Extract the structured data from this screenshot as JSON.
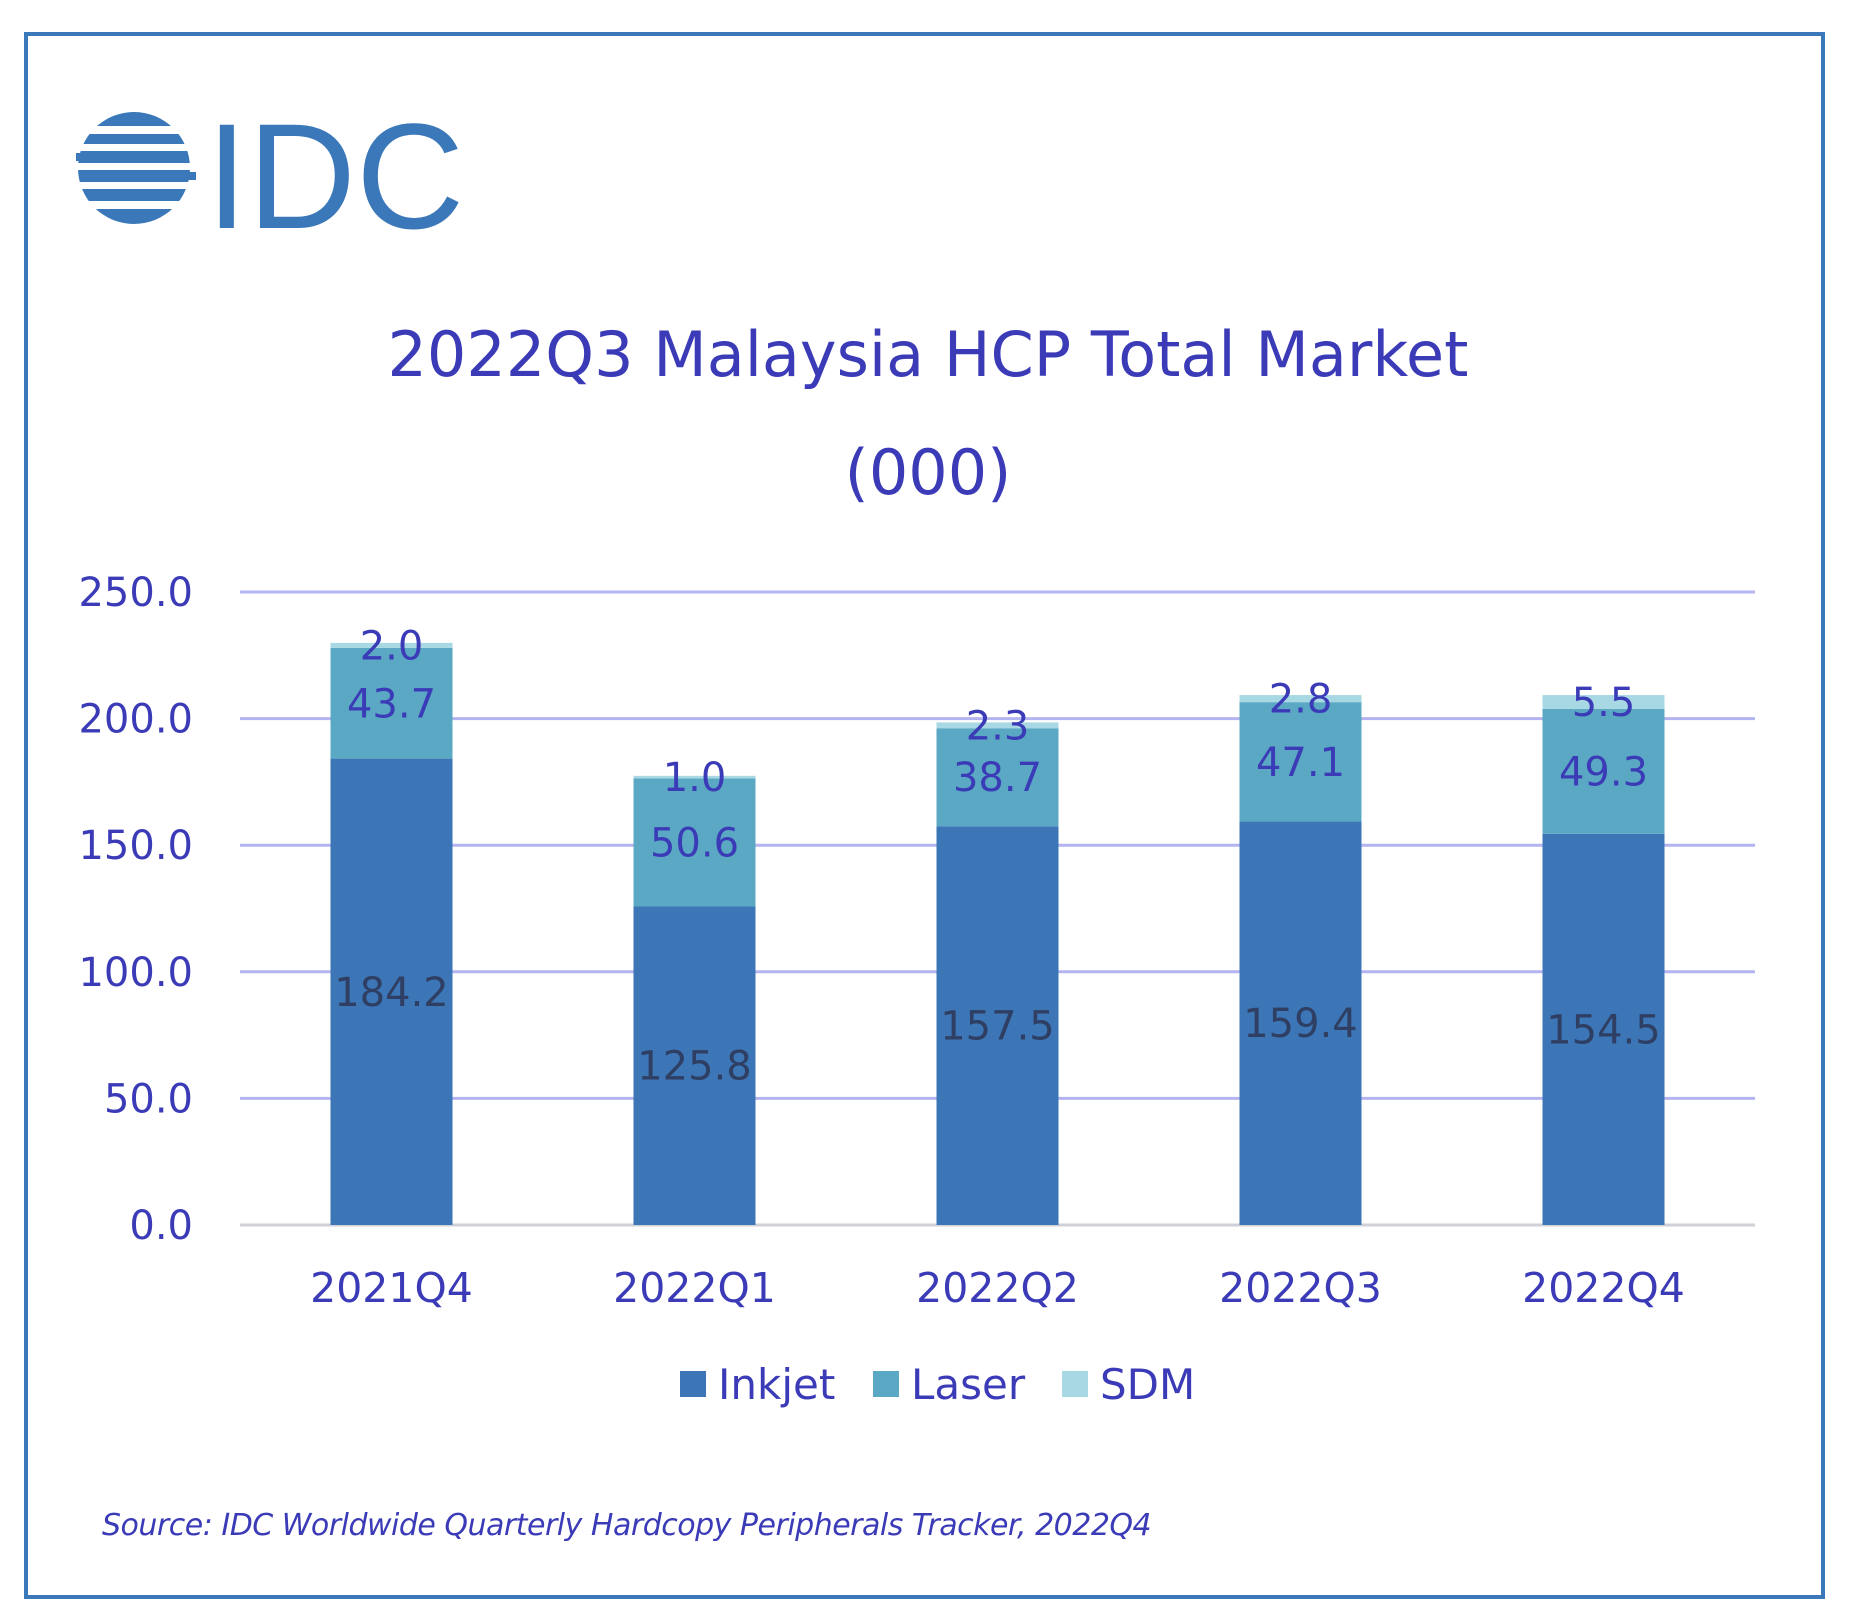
{
  "logo": {
    "text": "IDC",
    "color": "#3a78b9"
  },
  "title_line1": "2022Q3 Malaysia HCP Total Market",
  "title_line2": "(000)",
  "source": "Source: IDC Worldwide Quarterly Hardcopy Peripherals Tracker, 2022Q4",
  "chart_data": {
    "type": "bar",
    "stacked": true,
    "title": "2022Q3 Malaysia HCP Total Market (000)",
    "categories": [
      "2021Q4",
      "2022Q1",
      "2022Q2",
      "2022Q3",
      "2022Q4"
    ],
    "series": [
      {
        "name": "Inkjet",
        "color": "#3d76b6",
        "label_color": "#2e3f63",
        "values": [
          184.2,
          125.8,
          157.5,
          159.4,
          154.5
        ],
        "labels": [
          "184.2",
          "125.8",
          "157.5",
          "159.4",
          "154.5"
        ]
      },
      {
        "name": "Laser",
        "color": "#5aa8c3",
        "label_color": "#3b3bb8",
        "values": [
          43.7,
          50.6,
          38.7,
          47.1,
          49.3
        ],
        "labels": [
          "43.7",
          "50.6",
          "38.7",
          "47.1",
          "49.3"
        ]
      },
      {
        "name": "SDM",
        "color": "#a8d8e4",
        "label_color": "#3b3bb8",
        "values": [
          2.0,
          1.0,
          2.3,
          2.8,
          5.5
        ],
        "labels": [
          "2.0",
          "1.0",
          "2.3",
          "2.8",
          "5.5"
        ]
      }
    ],
    "ylim": [
      0,
      250
    ],
    "yticks": [
      "0.0",
      "50.0",
      "100.0",
      "150.0",
      "200.0",
      "250.0"
    ],
    "grid": true,
    "grid_color": "#b4b4f0",
    "legend_position": "bottom",
    "xlabel": "",
    "ylabel": ""
  }
}
